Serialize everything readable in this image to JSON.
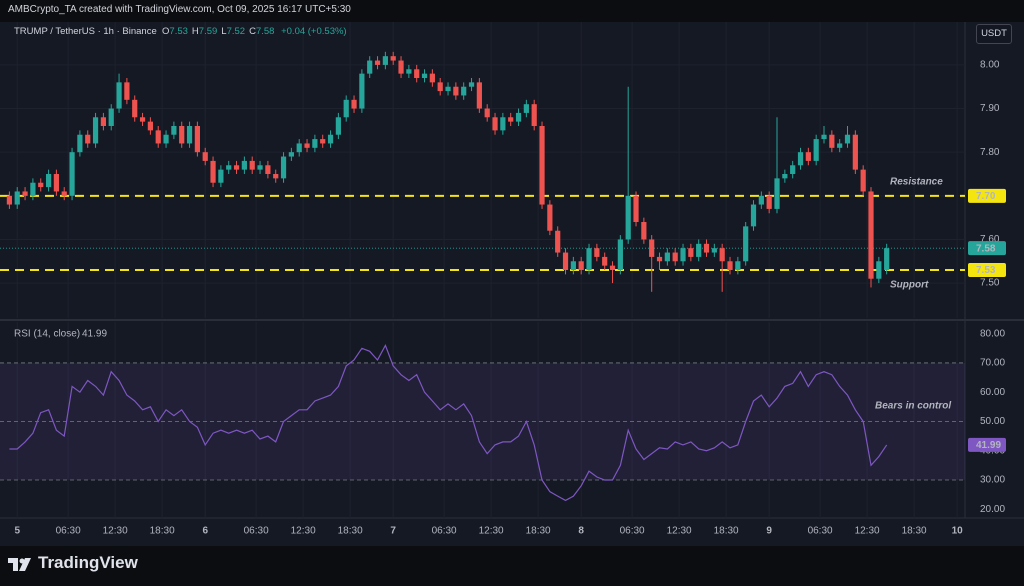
{
  "header": "AMBCrypto_TA created with TradingView.com, Oct 09, 2025 16:17 UTC+5:30",
  "legend": {
    "symbol": "TRUMP / TetherUS · 1h · Binance",
    "items": [
      {
        "key": "O",
        "value": "7.53"
      },
      {
        "key": "H",
        "value": "7.59"
      },
      {
        "key": "L",
        "value": "7.52"
      },
      {
        "key": "C",
        "value": "7.58"
      }
    ],
    "change": "+0.04 (+0.53%)"
  },
  "currency_button": "USDT",
  "brand": "TradingView",
  "chart_data": {
    "type": "candlestick",
    "up_color": "#26a69a",
    "down_color": "#ef5350",
    "x": [
      -1,
      0,
      1,
      2,
      3,
      4,
      5,
      6,
      7,
      8,
      9,
      10,
      11,
      12,
      13,
      14,
      15,
      16,
      17,
      18,
      19,
      20,
      21,
      22,
      23,
      24,
      25,
      26,
      27,
      28,
      29,
      30,
      31,
      32,
      33,
      34,
      35,
      36,
      37,
      38,
      39,
      40,
      41,
      42,
      43,
      44,
      45,
      46,
      47,
      48,
      49,
      50,
      51,
      52,
      53,
      54,
      55,
      56,
      57,
      58,
      59,
      60,
      61,
      62,
      63,
      64,
      65,
      66,
      67,
      68,
      69,
      70,
      71,
      72,
      73,
      74,
      75,
      76,
      77,
      78,
      79,
      80,
      81,
      82,
      83,
      84,
      85,
      86,
      87,
      88,
      89,
      90,
      91,
      92,
      93,
      94,
      95,
      96,
      97,
      98,
      99,
      100,
      101,
      102,
      103,
      104,
      105,
      106,
      107,
      108,
      109,
      110,
      111
    ],
    "xlim": [
      -2.2,
      121
    ],
    "xticks": [
      {
        "value": 0,
        "label": "5"
      },
      {
        "value": 6.5,
        "label": "06:30"
      },
      {
        "value": 12.5,
        "label": "12:30"
      },
      {
        "value": 18.5,
        "label": "18:30"
      },
      {
        "value": 24,
        "label": "6"
      },
      {
        "value": 30.5,
        "label": "06:30"
      },
      {
        "value": 36.5,
        "label": "12:30"
      },
      {
        "value": 42.5,
        "label": "18:30"
      },
      {
        "value": 48,
        "label": "7"
      },
      {
        "value": 54.5,
        "label": "06:30"
      },
      {
        "value": 60.5,
        "label": "12:30"
      },
      {
        "value": 66.5,
        "label": "18:30"
      },
      {
        "value": 72,
        "label": "8"
      },
      {
        "value": 78.5,
        "label": "06:30"
      },
      {
        "value": 84.5,
        "label": "12:30"
      },
      {
        "value": 90.5,
        "label": "18:30"
      },
      {
        "value": 96,
        "label": "9"
      },
      {
        "value": 102.5,
        "label": "06:30"
      },
      {
        "value": 108.5,
        "label": "12:30"
      },
      {
        "value": 114.5,
        "label": "18:30"
      },
      {
        "value": 120,
        "label": "10"
      }
    ],
    "candles": [
      [
        7.7,
        7.71,
        7.67,
        7.68
      ],
      [
        7.68,
        7.72,
        7.67,
        7.71
      ],
      [
        7.71,
        7.72,
        7.69,
        7.7
      ],
      [
        7.7,
        7.74,
        7.69,
        7.73
      ],
      [
        7.73,
        7.74,
        7.71,
        7.72
      ],
      [
        7.72,
        7.76,
        7.71,
        7.75
      ],
      [
        7.75,
        7.76,
        7.7,
        7.71
      ],
      [
        7.71,
        7.72,
        7.69,
        7.7
      ],
      [
        7.7,
        7.81,
        7.69,
        7.8
      ],
      [
        7.8,
        7.85,
        7.79,
        7.84
      ],
      [
        7.84,
        7.85,
        7.81,
        7.82
      ],
      [
        7.82,
        7.89,
        7.81,
        7.88
      ],
      [
        7.88,
        7.89,
        7.85,
        7.86
      ],
      [
        7.86,
        7.91,
        7.85,
        7.9
      ],
      [
        7.9,
        7.98,
        7.89,
        7.96
      ],
      [
        7.96,
        7.97,
        7.91,
        7.92
      ],
      [
        7.92,
        7.93,
        7.87,
        7.88
      ],
      [
        7.88,
        7.89,
        7.86,
        7.87
      ],
      [
        7.87,
        7.88,
        7.84,
        7.85
      ],
      [
        7.85,
        7.86,
        7.81,
        7.82
      ],
      [
        7.82,
        7.85,
        7.81,
        7.84
      ],
      [
        7.84,
        7.87,
        7.83,
        7.86
      ],
      [
        7.86,
        7.87,
        7.81,
        7.82
      ],
      [
        7.82,
        7.87,
        7.81,
        7.86
      ],
      [
        7.86,
        7.87,
        7.79,
        7.8
      ],
      [
        7.8,
        7.81,
        7.77,
        7.78
      ],
      [
        7.78,
        7.79,
        7.72,
        7.73
      ],
      [
        7.73,
        7.77,
        7.72,
        7.76
      ],
      [
        7.76,
        7.78,
        7.75,
        7.77
      ],
      [
        7.77,
        7.78,
        7.75,
        7.76
      ],
      [
        7.76,
        7.79,
        7.75,
        7.78
      ],
      [
        7.78,
        7.79,
        7.75,
        7.76
      ],
      [
        7.76,
        7.78,
        7.75,
        7.77
      ],
      [
        7.77,
        7.78,
        7.74,
        7.75
      ],
      [
        7.75,
        7.76,
        7.73,
        7.74
      ],
      [
        7.74,
        7.8,
        7.73,
        7.79
      ],
      [
        7.79,
        7.81,
        7.78,
        7.8
      ],
      [
        7.8,
        7.83,
        7.79,
        7.82
      ],
      [
        7.82,
        7.83,
        7.8,
        7.81
      ],
      [
        7.81,
        7.84,
        7.8,
        7.83
      ],
      [
        7.83,
        7.84,
        7.81,
        7.82
      ],
      [
        7.82,
        7.85,
        7.81,
        7.84
      ],
      [
        7.84,
        7.89,
        7.83,
        7.88
      ],
      [
        7.88,
        7.93,
        7.87,
        7.92
      ],
      [
        7.92,
        7.93,
        7.89,
        7.9
      ],
      [
        7.9,
        7.99,
        7.89,
        7.98
      ],
      [
        7.98,
        8.02,
        7.97,
        8.01
      ],
      [
        8.01,
        8.02,
        7.99,
        8.0
      ],
      [
        8.0,
        8.03,
        7.99,
        8.02
      ],
      [
        8.02,
        8.03,
        8.0,
        8.01
      ],
      [
        8.01,
        8.02,
        7.97,
        7.98
      ],
      [
        7.98,
        8.0,
        7.97,
        7.99
      ],
      [
        7.99,
        8.0,
        7.96,
        7.97
      ],
      [
        7.97,
        7.99,
        7.96,
        7.98
      ],
      [
        7.98,
        7.99,
        7.95,
        7.96
      ],
      [
        7.96,
        7.97,
        7.93,
        7.94
      ],
      [
        7.94,
        7.96,
        7.93,
        7.95
      ],
      [
        7.95,
        7.96,
        7.92,
        7.93
      ],
      [
        7.93,
        7.96,
        7.92,
        7.95
      ],
      [
        7.95,
        7.97,
        7.94,
        7.96
      ],
      [
        7.96,
        7.97,
        7.89,
        7.9
      ],
      [
        7.9,
        7.91,
        7.87,
        7.88
      ],
      [
        7.88,
        7.89,
        7.84,
        7.85
      ],
      [
        7.85,
        7.89,
        7.84,
        7.88
      ],
      [
        7.88,
        7.89,
        7.86,
        7.87
      ],
      [
        7.87,
        7.9,
        7.86,
        7.89
      ],
      [
        7.89,
        7.92,
        7.88,
        7.91
      ],
      [
        7.91,
        7.92,
        7.85,
        7.86
      ],
      [
        7.86,
        7.87,
        7.67,
        7.68
      ],
      [
        7.68,
        7.69,
        7.61,
        7.62
      ],
      [
        7.62,
        7.63,
        7.56,
        7.57
      ],
      [
        7.57,
        7.58,
        7.52,
        7.53
      ],
      [
        7.53,
        7.56,
        7.52,
        7.55
      ],
      [
        7.55,
        7.56,
        7.52,
        7.53
      ],
      [
        7.53,
        7.59,
        7.52,
        7.58
      ],
      [
        7.58,
        7.59,
        7.55,
        7.56
      ],
      [
        7.56,
        7.57,
        7.53,
        7.54
      ],
      [
        7.54,
        7.55,
        7.5,
        7.53
      ],
      [
        7.53,
        7.61,
        7.52,
        7.6
      ],
      [
        7.6,
        7.95,
        7.59,
        7.7
      ],
      [
        7.7,
        7.71,
        7.63,
        7.64
      ],
      [
        7.64,
        7.65,
        7.59,
        7.6
      ],
      [
        7.6,
        7.61,
        7.48,
        7.56
      ],
      [
        7.56,
        7.57,
        7.53,
        7.55
      ],
      [
        7.55,
        7.58,
        7.54,
        7.57
      ],
      [
        7.57,
        7.58,
        7.54,
        7.55
      ],
      [
        7.55,
        7.59,
        7.54,
        7.58
      ],
      [
        7.58,
        7.59,
        7.55,
        7.56
      ],
      [
        7.56,
        7.6,
        7.55,
        7.59
      ],
      [
        7.59,
        7.6,
        7.56,
        7.57
      ],
      [
        7.57,
        7.59,
        7.56,
        7.58
      ],
      [
        7.58,
        7.59,
        7.48,
        7.55
      ],
      [
        7.55,
        7.56,
        7.52,
        7.53
      ],
      [
        7.53,
        7.56,
        7.52,
        7.55
      ],
      [
        7.55,
        7.64,
        7.54,
        7.63
      ],
      [
        7.63,
        7.69,
        7.62,
        7.68
      ],
      [
        7.68,
        7.71,
        7.67,
        7.7
      ],
      [
        7.7,
        7.71,
        7.66,
        7.67
      ],
      [
        7.67,
        7.88,
        7.66,
        7.74
      ],
      [
        7.74,
        7.76,
        7.73,
        7.75
      ],
      [
        7.75,
        7.78,
        7.74,
        7.77
      ],
      [
        7.77,
        7.81,
        7.76,
        7.8
      ],
      [
        7.8,
        7.81,
        7.77,
        7.78
      ],
      [
        7.78,
        7.84,
        7.77,
        7.83
      ],
      [
        7.83,
        7.86,
        7.82,
        7.84
      ],
      [
        7.84,
        7.85,
        7.8,
        7.81
      ],
      [
        7.81,
        7.83,
        7.8,
        7.82
      ],
      [
        7.82,
        7.86,
        7.81,
        7.84
      ],
      [
        7.84,
        7.85,
        7.75,
        7.76
      ],
      [
        7.76,
        7.77,
        7.7,
        7.71
      ],
      [
        7.71,
        7.72,
        7.49,
        7.51
      ],
      [
        7.51,
        7.56,
        7.5,
        7.55
      ],
      [
        7.53,
        7.59,
        7.52,
        7.58
      ]
    ],
    "ylim": [
      7.42,
      8.08
    ],
    "yticks": [
      {
        "value": 7.5,
        "label": "7.50"
      },
      {
        "value": 7.6,
        "label": "7.60"
      },
      {
        "value": 7.7,
        "label": "7.70"
      },
      {
        "value": 7.8,
        "label": "7.80"
      },
      {
        "value": 7.9,
        "label": "7.90"
      },
      {
        "value": 8.0,
        "label": "8.00"
      }
    ],
    "grid": true,
    "last_price": {
      "value": 7.58,
      "label": "7.58"
    },
    "levels": [
      {
        "name": "Resistance",
        "value": 7.7,
        "label": "7.70",
        "color": "#f5e50f"
      },
      {
        "name": "Support",
        "value": 7.53,
        "label": "7.53",
        "color": "#f5e50f"
      }
    ],
    "rsi": {
      "title": "RSI (14, close)",
      "last": 41.99,
      "color": "#7e57c2",
      "annotation": "Bears in control",
      "values": [
        40.6,
        40.6,
        43,
        46,
        53,
        54,
        47,
        45,
        62,
        60,
        64,
        62,
        59,
        67,
        64,
        59,
        57,
        54,
        55,
        50,
        54,
        52,
        54,
        50,
        48,
        42,
        46,
        47,
        46,
        47,
        46,
        47,
        44,
        45,
        43,
        50,
        52,
        54,
        54,
        57,
        58,
        59,
        62,
        69,
        71,
        75,
        74,
        71,
        76,
        69,
        66,
        64,
        66,
        60,
        57,
        54,
        56,
        54,
        56,
        52,
        43,
        39,
        42,
        43,
        43,
        45,
        50,
        42,
        30,
        26,
        24.5,
        23,
        24.5,
        28,
        33,
        31,
        30,
        30,
        35,
        47,
        40.6,
        37,
        39,
        41,
        40.6,
        43,
        42,
        43,
        40.6,
        40,
        41,
        43,
        41,
        42,
        50,
        57,
        59,
        55,
        58,
        62,
        63,
        67,
        62,
        66,
        67,
        66,
        62,
        59,
        54,
        50,
        35,
        38,
        41.99
      ],
      "ylim": [
        17,
        84
      ],
      "yticks": [
        {
          "value": 20,
          "label": "20.00"
        },
        {
          "value": 30,
          "label": "30.00"
        },
        {
          "value": 40,
          "label": "40.00"
        },
        {
          "value": 50,
          "label": "50.00"
        },
        {
          "value": 60,
          "label": "60.00"
        },
        {
          "value": 70,
          "label": "70.00"
        },
        {
          "value": 80,
          "label": "80.00"
        }
      ],
      "bands": [
        30,
        50,
        70
      ]
    }
  }
}
